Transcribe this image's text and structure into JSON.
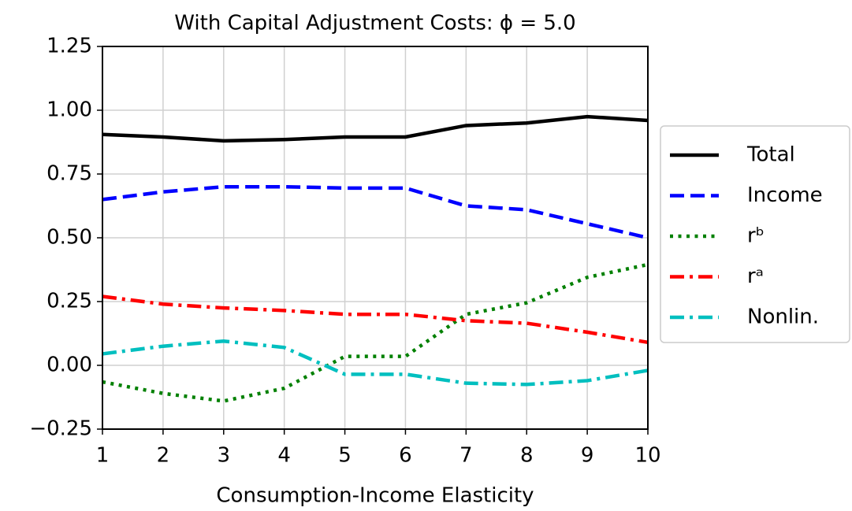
{
  "chart_data": {
    "type": "line",
    "title": "With Capital Adjustment Costs: ϕ = 5.0",
    "x_label": "Consumption-Income Elasticity",
    "x": [
      1,
      2,
      3,
      4,
      5,
      6,
      7,
      8,
      9,
      10
    ],
    "series": [
      {
        "name": "Total",
        "color": "#000000",
        "style": "solid",
        "values": [
          0.905,
          0.895,
          0.88,
          0.885,
          0.895,
          0.895,
          0.94,
          0.95,
          0.975,
          0.96
        ]
      },
      {
        "name": "Income",
        "color": "#0000ff",
        "style": "dashed",
        "values": [
          0.65,
          0.68,
          0.7,
          0.7,
          0.695,
          0.695,
          0.625,
          0.61,
          0.555,
          0.5
        ]
      },
      {
        "name": "rᵇ",
        "color": "#008000",
        "style": "dotted",
        "values": [
          -0.065,
          -0.11,
          -0.14,
          -0.09,
          0.035,
          0.035,
          0.2,
          0.245,
          0.345,
          0.395
        ]
      },
      {
        "name": "rᵃ",
        "color": "#ff0000",
        "style": "dashdot",
        "values": [
          0.27,
          0.24,
          0.225,
          0.215,
          0.2,
          0.2,
          0.175,
          0.165,
          0.13,
          0.09
        ]
      },
      {
        "name": "Nonlin.",
        "color": "#00bfbf",
        "style": "dashdot",
        "values": [
          0.045,
          0.075,
          0.095,
          0.07,
          -0.035,
          -0.035,
          -0.07,
          -0.075,
          -0.06,
          -0.02
        ]
      }
    ],
    "xlim": [
      1,
      10
    ],
    "xticks": [
      1,
      2,
      3,
      4,
      5,
      6,
      7,
      8,
      9,
      10
    ],
    "ylim": [
      -0.25,
      1.25
    ],
    "yticks": [
      {
        "value": -0.25,
        "label": "−0.25"
      },
      {
        "value": 0,
        "label": "0.00"
      },
      0.25,
      {
        "value": 0.5,
        "label": "0.50"
      },
      0.75,
      {
        "value": 1,
        "label": "1.00"
      },
      1.25
    ],
    "grid": true,
    "legend": "outside right"
  }
}
